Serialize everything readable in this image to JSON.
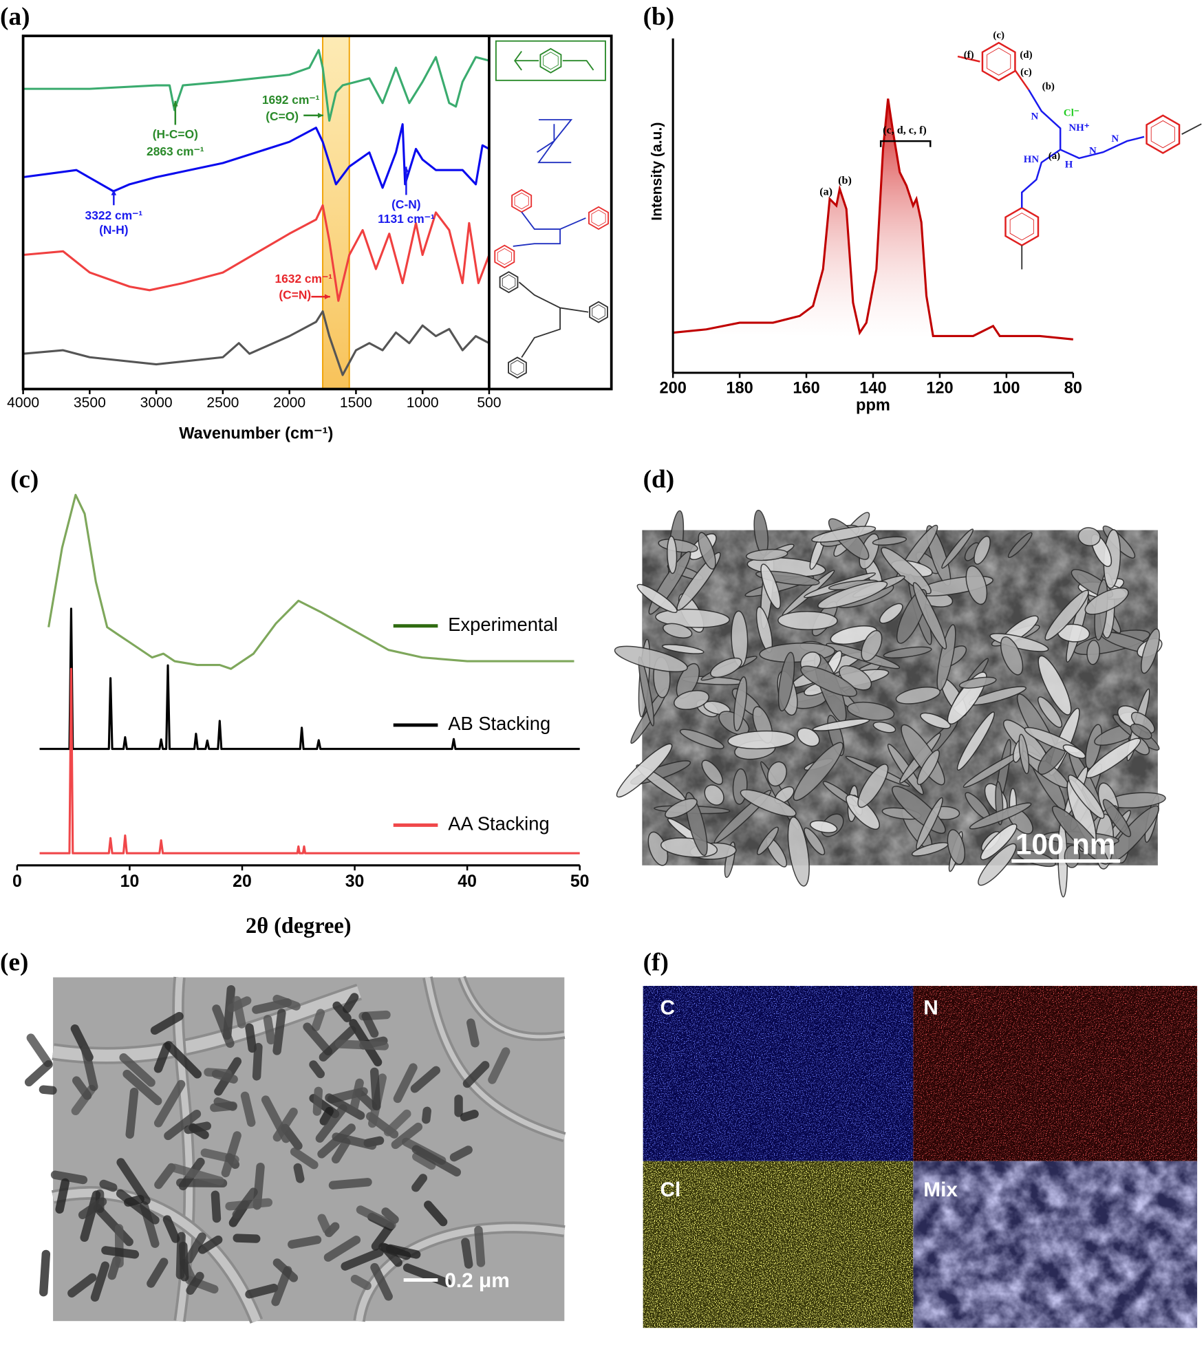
{
  "panel_labels": [
    "(a)",
    "(b)",
    "(c)",
    "(d)",
    "(e)",
    "(f)"
  ],
  "chart_data": [
    {
      "type": "line",
      "xlabel": "Wavenumber (cm⁻¹)",
      "xlim": [
        4000,
        500
      ],
      "xticks": [
        4000,
        3500,
        3000,
        2500,
        2000,
        1500,
        1000,
        500
      ],
      "ylim": [
        0,
        100
      ],
      "highlight": [
        1750,
        1550
      ],
      "series": [
        {
          "color": "#3aab6e",
          "x": [
            4000,
            3500,
            3000,
            2900,
            2863,
            2800,
            2500,
            2000,
            1850,
            1780,
            1750,
            1700,
            1650,
            1600,
            1500,
            1400,
            1300,
            1200,
            1100,
            1000,
            900,
            800,
            750,
            700,
            600,
            500
          ],
          "values": [
            85,
            85,
            86,
            86,
            79,
            86,
            87,
            89,
            91,
            96,
            91,
            76,
            84,
            86,
            87,
            88,
            81,
            91,
            81,
            87,
            94,
            81,
            80,
            87,
            94,
            93
          ]
        },
        {
          "color": "#0a0aee",
          "x": [
            4000,
            3600,
            3322,
            3200,
            3000,
            2500,
            2000,
            1800,
            1750,
            1650,
            1550,
            1400,
            1300,
            1200,
            1150,
            1131,
            1050,
            1000,
            900,
            700,
            600,
            550,
            500
          ],
          "values": [
            60,
            62,
            56,
            58,
            60,
            64,
            70,
            74,
            70,
            58,
            63,
            67,
            57,
            67,
            75,
            58,
            68,
            65,
            62,
            62,
            58,
            69,
            68
          ]
        },
        {
          "color": "#f04040",
          "x": [
            4000,
            3700,
            3500,
            3200,
            3050,
            2800,
            2500,
            2000,
            1800,
            1750,
            1700,
            1632,
            1550,
            1450,
            1350,
            1250,
            1150,
            1050,
            1000,
            900,
            800,
            700,
            650,
            580,
            500
          ],
          "values": [
            38,
            39,
            33,
            29,
            28,
            30,
            33,
            44,
            48,
            52,
            42,
            25,
            38,
            45,
            34,
            44,
            30,
            47,
            38,
            50,
            45,
            30,
            47,
            30,
            38
          ]
        },
        {
          "color": "#555555",
          "x": [
            4000,
            3700,
            3500,
            3000,
            2500,
            2380,
            2300,
            2000,
            1800,
            1750,
            1700,
            1600,
            1500,
            1400,
            1300,
            1200,
            1100,
            1000,
            900,
            800,
            700,
            600,
            500
          ],
          "values": [
            10,
            11,
            9,
            7,
            9,
            13,
            10,
            15,
            19,
            22,
            15,
            4,
            11,
            13,
            11,
            16,
            13,
            18,
            15,
            17,
            11,
            15,
            13
          ]
        }
      ],
      "annotations": [
        "(H-C=O)",
        "2863 cm⁻¹",
        "1692 cm⁻¹",
        "(C=O)",
        "3322 cm⁻¹",
        "(N-H)",
        "(C-N)",
        "1131 cm⁻¹",
        "1632 cm⁻¹",
        "(C=N)"
      ]
    },
    {
      "type": "area",
      "xlabel": "ppm",
      "ylabel": "Intensity (a.u.)",
      "xlim": [
        200,
        80
      ],
      "xticks": [
        200,
        180,
        160,
        140,
        120,
        100,
        80
      ],
      "ylim": [
        0,
        100
      ],
      "series": [
        {
          "color": "#c00000",
          "x": [
            200,
            190,
            180,
            170,
            162,
            158,
            155,
            153,
            151,
            150,
            148,
            146,
            144,
            142,
            139,
            137,
            135.5,
            134,
            132,
            130,
            128,
            127,
            125.5,
            124,
            122,
            120,
            110,
            104,
            102,
            90,
            80
          ],
          "values": [
            12,
            13,
            15,
            15,
            17,
            20,
            31,
            52,
            50,
            55,
            49,
            21,
            12,
            15,
            31,
            67,
            82,
            72,
            60,
            56,
            50,
            52,
            45,
            23,
            11,
            11,
            11,
            14,
            11,
            11,
            10
          ]
        }
      ],
      "annotations": [
        "(a)",
        "(b)",
        "(c, d, c, f)"
      ],
      "structure_labels": [
        "(f)",
        "(c)",
        "(d)",
        "(c)",
        "(b)",
        "Cl⁻",
        "NH⁺",
        "HN",
        "(a)",
        "N",
        "H",
        "N",
        "N"
      ]
    },
    {
      "type": "line",
      "xlabel": "2θ (degree)",
      "xlim": [
        0,
        50
      ],
      "xticks": [
        0,
        10,
        20,
        30,
        40,
        50
      ],
      "ylim": [
        0,
        100
      ],
      "legend": "right",
      "series": [
        {
          "name": "Experimental",
          "color": "#7ea75b",
          "x": [
            2.8,
            4,
            5.2,
            6,
            7,
            8,
            9,
            10,
            12,
            13,
            14,
            16,
            18,
            19,
            21,
            23,
            25,
            27,
            30,
            33,
            36,
            40,
            45,
            49.5
          ],
          "values": [
            63,
            84,
            98,
            93,
            75,
            63,
            61,
            59,
            55,
            56,
            54,
            53,
            53,
            52,
            56,
            64,
            70,
            67,
            62,
            57,
            55,
            54,
            54,
            54
          ]
        },
        {
          "name": "AB Stacking",
          "color": "#000000",
          "x": [
            2,
            4.65,
            4.8,
            4.95,
            8.15,
            8.3,
            8.45,
            9.45,
            9.6,
            9.75,
            12.65,
            12.8,
            12.95,
            13.25,
            13.4,
            13.55,
            15.75,
            15.9,
            16.05,
            16.75,
            16.9,
            17.05,
            17.85,
            18,
            18.15,
            25.15,
            25.3,
            25.45,
            26.65,
            26.8,
            26.95,
            38.65,
            38.8,
            38.95,
            50
          ],
          "values": [
            30.8,
            30.8,
            67.9,
            30.8,
            30.8,
            49.5,
            30.8,
            30.8,
            33.9,
            30.8,
            30.8,
            33.3,
            30.8,
            30.8,
            52.9,
            30.8,
            30.8,
            34.8,
            30.8,
            30.8,
            33,
            30.8,
            30.8,
            38.2,
            30.8,
            30.8,
            36.4,
            30.8,
            30.8,
            33.1,
            30.8,
            30.8,
            33.4,
            30.8,
            30.8
          ]
        },
        {
          "name": "AA Stacking",
          "color": "#f0474a",
          "x": [
            2,
            4.65,
            4.8,
            4.95,
            8.15,
            8.3,
            8.45,
            9.45,
            9.6,
            9.75,
            12.65,
            12.8,
            12.95,
            24.9,
            25,
            25.1,
            25.4,
            25.5,
            25.6,
            50
          ],
          "values": [
            3.2,
            3.2,
            52,
            3.2,
            3.2,
            7.2,
            3.2,
            3.2,
            7.9,
            3.2,
            3.2,
            6.6,
            3.2,
            3.2,
            5,
            3.2,
            3.2,
            5,
            3.2,
            3.2
          ]
        }
      ]
    }
  ],
  "sem_image": {
    "scale_bar": "100 nm"
  },
  "tem_image": {
    "scale_bar": "0.2 μm"
  },
  "eds_maps": {
    "tiles": [
      "C",
      "N",
      "Cl",
      "Mix"
    ]
  }
}
